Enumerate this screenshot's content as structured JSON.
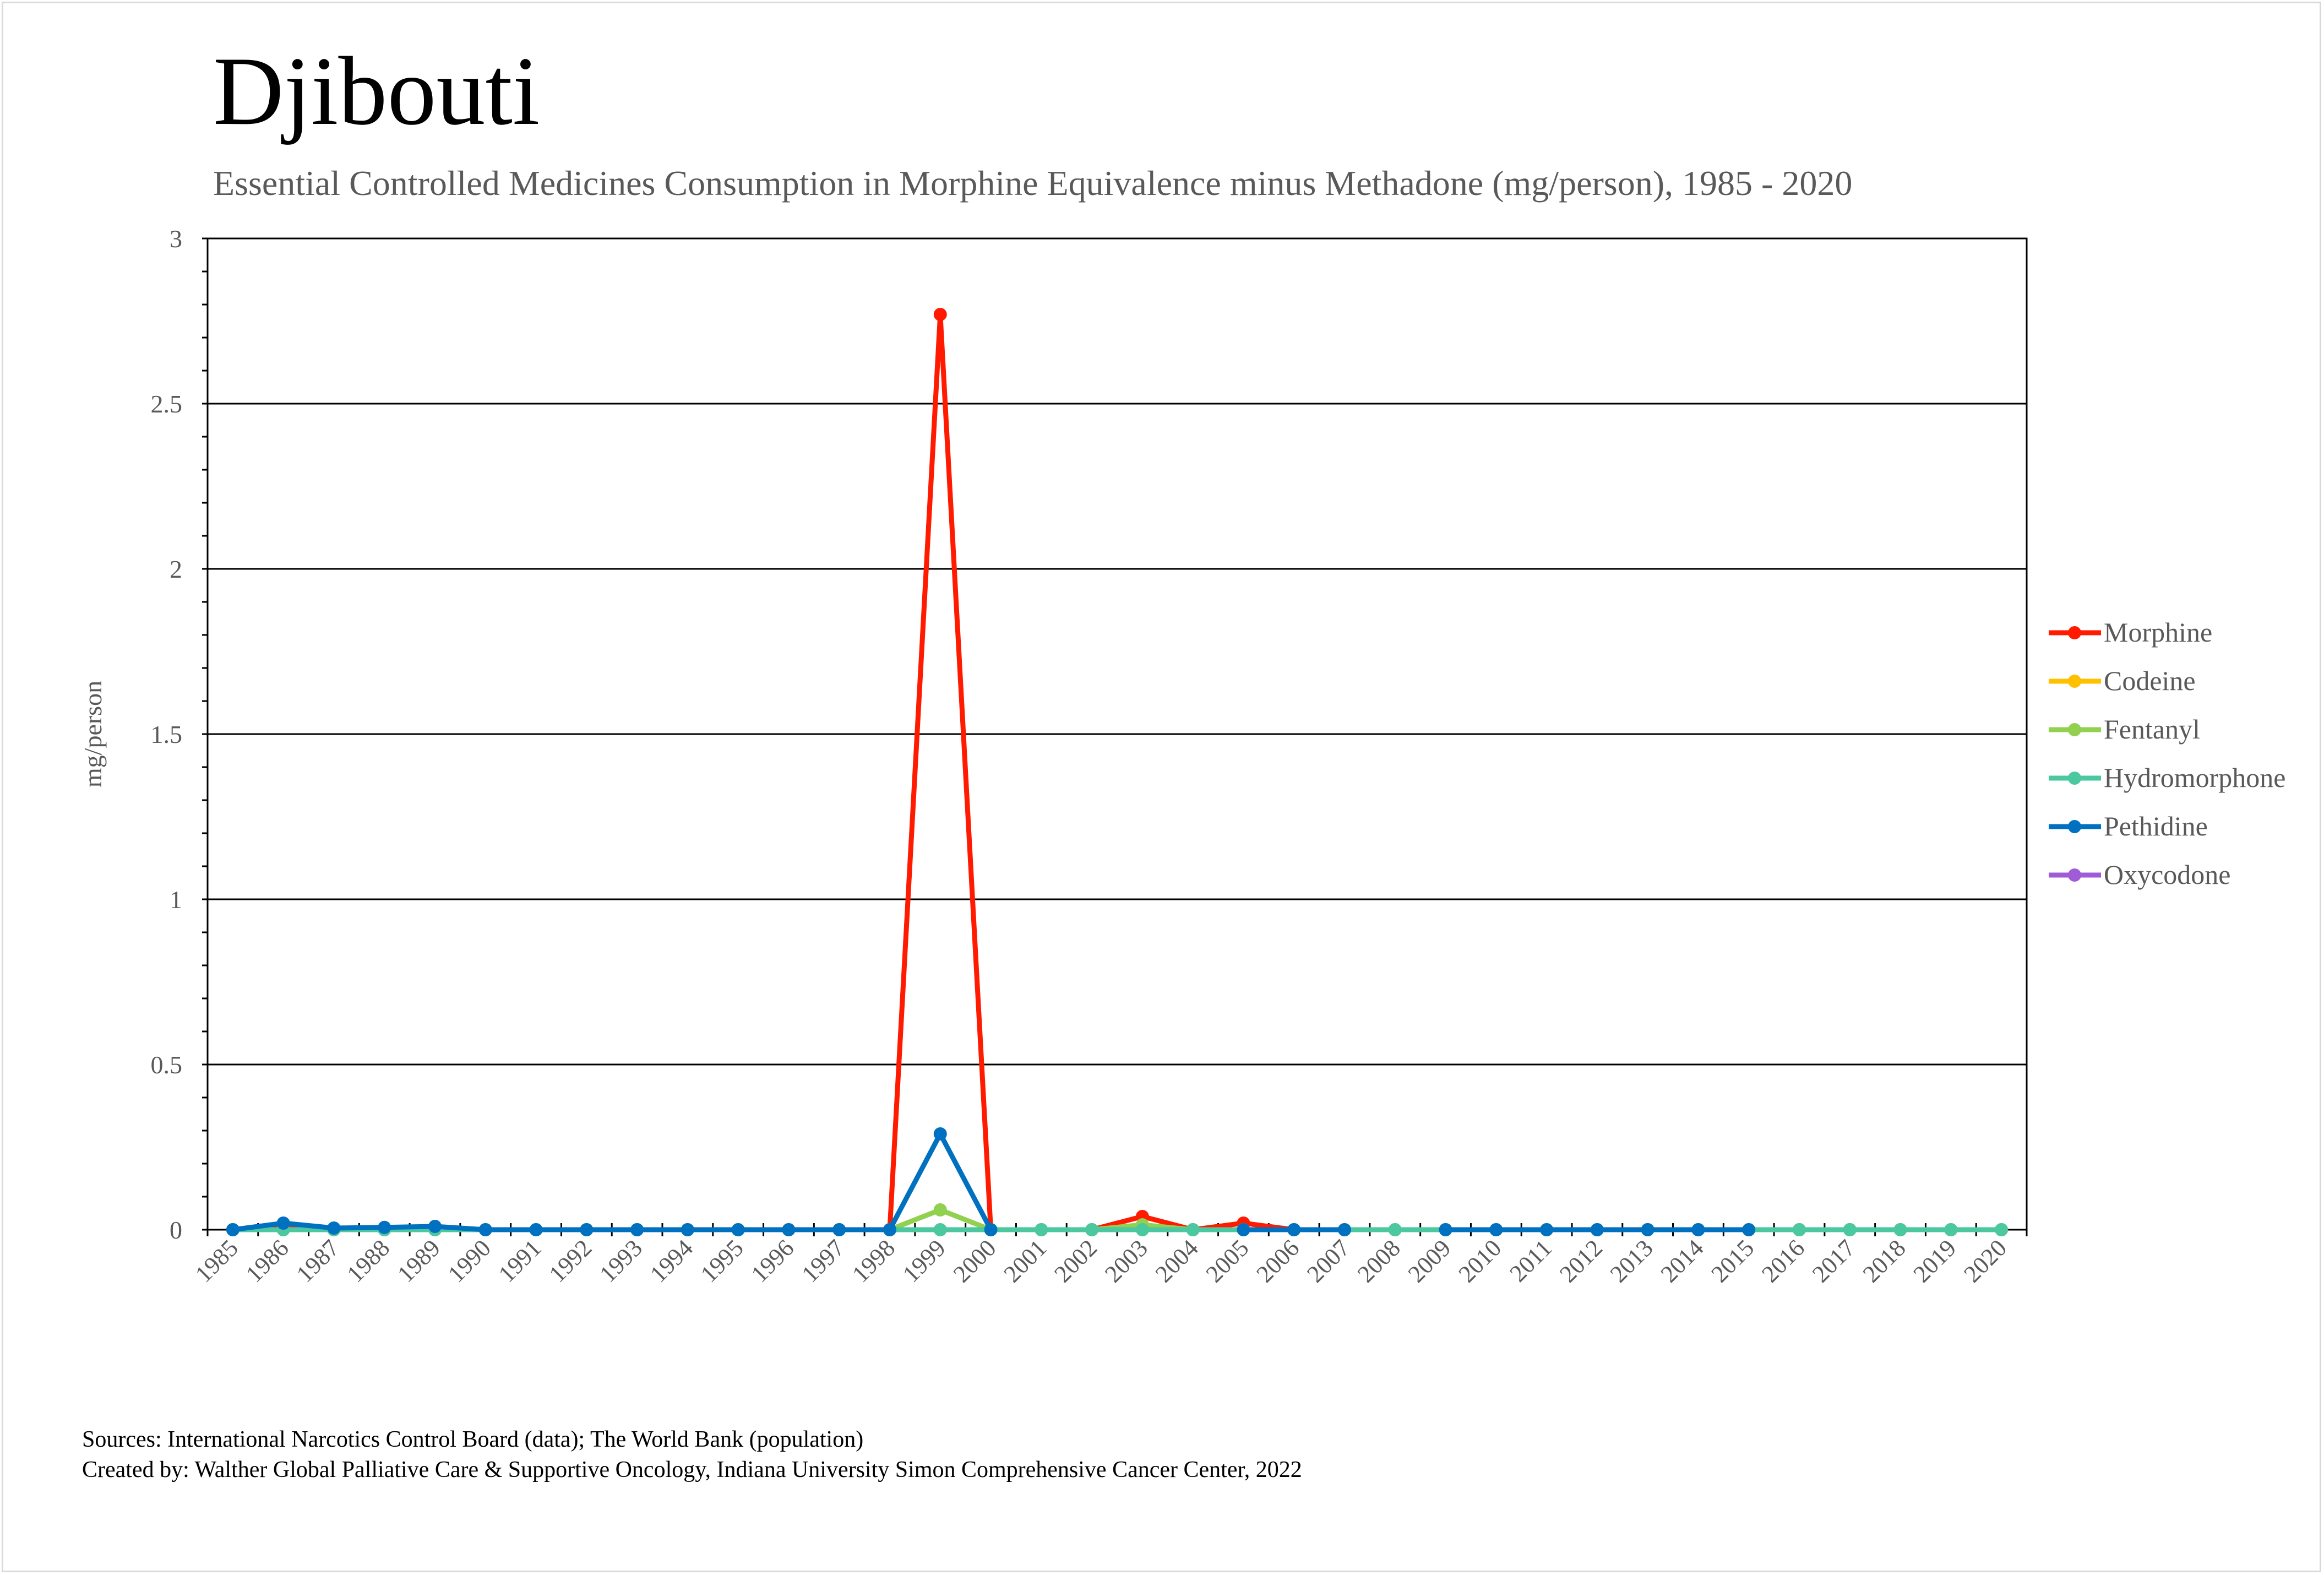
{
  "header": {
    "title": "Djibouti",
    "subtitle": "Essential Controlled Medicines Consumption in Morphine Equivalence minus Methadone (mg/person), 1985 - 2020"
  },
  "footer": {
    "sources": "Sources: International Narcotics Control Board (data); The World Bank (population)",
    "created_by": "Created by: Walther Global Palliative Care & Supportive Oncology, Indiana University Simon Comprehensive Cancer Center, 2022"
  },
  "chart_data": {
    "type": "line",
    "title": "Djibouti",
    "subtitle": "Essential Controlled Medicines Consumption in Morphine Equivalence minus Methadone (mg/person), 1985 - 2020",
    "xlabel": "",
    "ylabel": "mg/person",
    "ylim": [
      0,
      3
    ],
    "yticks": [
      "0",
      "0.5",
      "1",
      "1.5",
      "2",
      "2.5",
      "3"
    ],
    "grid": "horizontal",
    "legend_position": "right",
    "categories": [
      "1985",
      "1986",
      "1987",
      "1988",
      "1989",
      "1990",
      "1991",
      "1992",
      "1993",
      "1994",
      "1995",
      "1996",
      "1997",
      "1998",
      "1999",
      "2000",
      "2001",
      "2002",
      "2003",
      "2004",
      "2005",
      "2006",
      "2007",
      "2008",
      "2009",
      "2010",
      "2011",
      "2012",
      "2013",
      "2014",
      "2015",
      "2016",
      "2017",
      "2018",
      "2019",
      "2020"
    ],
    "series": [
      {
        "name": "Morphine",
        "color": "#ff1a00",
        "values": [
          0,
          0.01,
          0,
          0,
          0,
          0,
          0,
          0,
          0,
          0,
          0,
          0,
          0,
          0,
          2.77,
          0,
          0,
          0,
          0.04,
          0,
          0.02,
          0,
          0,
          0,
          0,
          0,
          0,
          0,
          0,
          0,
          0,
          0,
          0,
          0,
          0,
          0
        ]
      },
      {
        "name": "Codeine",
        "color": "#ffc000",
        "values": [
          0,
          0,
          0,
          0,
          0,
          0,
          0,
          0,
          0,
          0,
          0,
          0,
          0,
          0,
          0,
          0,
          0,
          0,
          0,
          0,
          0,
          0,
          0,
          0,
          0,
          0,
          0,
          0,
          0,
          0,
          0,
          0,
          0,
          0,
          0,
          0
        ]
      },
      {
        "name": "Fentanyl",
        "color": "#92d050",
        "values": [
          0,
          0,
          0,
          0,
          0,
          0,
          0,
          0,
          0,
          0,
          0,
          0,
          0,
          0,
          0.06,
          0,
          0,
          0,
          0.015,
          0,
          0,
          0,
          0,
          0,
          0,
          0,
          0,
          0,
          0,
          0,
          0,
          0,
          0,
          0,
          0,
          0
        ]
      },
      {
        "name": "Hydromorphone",
        "color": "#4bc8a0",
        "values": [
          0,
          0,
          0,
          0,
          0,
          0,
          0,
          0,
          0,
          0,
          0,
          0,
          0,
          0,
          0,
          0,
          0,
          0,
          0,
          0,
          0,
          0,
          0,
          0,
          0,
          0,
          0,
          0,
          0,
          0,
          0,
          0,
          0,
          0,
          0,
          0
        ]
      },
      {
        "name": "Pethidine",
        "color": "#0070c0",
        "values": [
          0,
          0.02,
          0.005,
          0.007,
          0.01,
          0,
          0,
          0,
          0,
          0,
          0,
          0,
          0,
          0,
          0.29,
          0,
          null,
          null,
          null,
          null,
          0,
          0,
          0,
          null,
          0,
          0,
          0,
          0,
          0,
          0,
          0,
          null,
          null,
          null,
          null,
          null
        ]
      },
      {
        "name": "Oxycodone",
        "color": "#a05cd6",
        "values": [
          null,
          null,
          null,
          null,
          null,
          null,
          null,
          null,
          null,
          null,
          null,
          null,
          null,
          null,
          null,
          null,
          null,
          null,
          null,
          null,
          null,
          null,
          null,
          null,
          null,
          null,
          null,
          null,
          null,
          null,
          null,
          null,
          null,
          null,
          null,
          null
        ]
      }
    ]
  }
}
